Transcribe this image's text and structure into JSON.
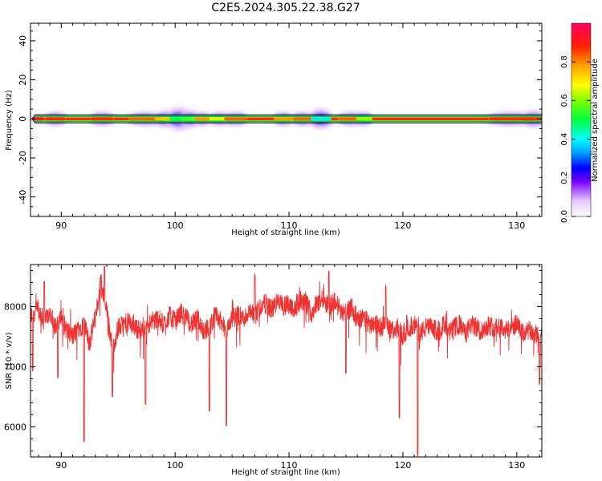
{
  "title": "C2E5.2024.305.22.38.G27",
  "chart_data": [
    {
      "type": "heatmap",
      "xlabel": "Height of straight line (km)",
      "ylabel": "Frequency (Hz)",
      "xlim": [
        87.3,
        132.2
      ],
      "ylim": [
        -50,
        49
      ],
      "xticks": [
        90,
        100,
        110,
        120,
        130
      ],
      "yticks": [
        -40,
        -20,
        0,
        20,
        40
      ],
      "ridge_frequency_hz": 0,
      "blobs": [
        {
          "x": 88.0,
          "spread": 0.5,
          "width": 1.0,
          "peak": 0.95
        },
        {
          "x": 89.5,
          "spread": 0.9,
          "width": 2.0,
          "peak": 0.9
        },
        {
          "x": 93.6,
          "spread": 1.0,
          "width": 2.0,
          "peak": 0.9
        },
        {
          "x": 97.5,
          "spread": 1.6,
          "width": 2.0,
          "peak": 0.85
        },
        {
          "x": 99.4,
          "spread": 1.2,
          "width": 2.5,
          "peak": 0.75
        },
        {
          "x": 100.4,
          "spread": 0.9,
          "width": 3.5,
          "peak": 0.5
        },
        {
          "x": 101.4,
          "spread": 0.8,
          "width": 2.5,
          "peak": 0.55
        },
        {
          "x": 102.4,
          "spread": 0.7,
          "width": 2.0,
          "peak": 0.8
        },
        {
          "x": 104.0,
          "spread": 1.0,
          "width": 2.0,
          "peak": 0.65
        },
        {
          "x": 105.3,
          "spread": 1.0,
          "width": 2.0,
          "peak": 0.85
        },
        {
          "x": 109.5,
          "spread": 0.8,
          "width": 2.0,
          "peak": 0.8
        },
        {
          "x": 111.2,
          "spread": 0.9,
          "width": 2.0,
          "peak": 0.85
        },
        {
          "x": 112.8,
          "spread": 0.9,
          "width": 3.0,
          "peak": 0.4
        },
        {
          "x": 115.5,
          "spread": 1.2,
          "width": 2.0,
          "peak": 0.85
        },
        {
          "x": 116.6,
          "spread": 0.7,
          "width": 2.0,
          "peak": 0.6
        },
        {
          "x": 129.5,
          "spread": 2.0,
          "width": 2.0,
          "peak": 0.9
        },
        {
          "x": 131.5,
          "spread": 0.9,
          "width": 2.5,
          "peak": 0.9
        }
      ]
    },
    {
      "type": "line",
      "xlabel": "Height of straight line (km)",
      "ylabel": "SNR (10 * v/v)",
      "xlim": [
        87.3,
        132.2
      ],
      "ylim": [
        5500,
        8700
      ],
      "xticks": [
        90,
        100,
        110,
        120,
        130
      ],
      "yticks": [
        6000,
        7000,
        8000
      ],
      "color": "#ee3333",
      "series": [
        {
          "x": [
            87.5,
            88.0,
            88.5,
            89.0,
            89.5,
            90.0,
            90.5,
            91.0,
            91.5,
            92.0,
            92.5,
            93.0,
            93.5,
            94.0,
            94.5,
            95.0,
            95.5,
            96.0,
            96.5,
            97.0,
            97.5,
            98.0,
            98.5,
            99.0,
            99.5,
            100.0,
            100.5,
            101.0,
            101.5,
            102.0,
            102.5,
            103.0,
            103.5,
            104.0,
            104.5,
            105.0,
            105.5,
            106.0,
            106.5,
            107.0,
            107.5,
            108.0,
            108.5,
            109.0,
            109.5,
            110.0,
            110.5,
            111.0,
            111.5,
            112.0,
            112.5,
            113.0,
            113.5,
            114.0,
            114.5,
            115.0,
            115.5,
            116.0,
            116.5,
            117.0,
            117.5,
            118.0,
            118.5,
            119.0,
            119.5,
            120.0,
            120.5,
            121.0,
            121.5,
            122.0,
            122.5,
            123.0,
            123.5,
            124.0,
            124.5,
            125.0,
            125.5,
            126.0,
            126.5,
            127.0,
            127.5,
            128.0,
            128.5,
            129.0,
            129.5,
            130.0,
            130.5,
            131.0,
            131.5,
            132.0
          ],
          "y": [
            7850,
            7950,
            7750,
            7900,
            7650,
            7800,
            7600,
            7500,
            7650,
            7700,
            7400,
            7850,
            8350,
            7900,
            7300,
            7650,
            7700,
            7750,
            7650,
            7600,
            7700,
            7750,
            7800,
            7700,
            7850,
            7750,
            7900,
            7800,
            7700,
            7800,
            7600,
            7650,
            7850,
            7750,
            7600,
            7800,
            7850,
            7800,
            7900,
            7850,
            8000,
            8050,
            7950,
            8100,
            8000,
            8050,
            7950,
            8100,
            8050,
            7900,
            8050,
            8150,
            8000,
            8100,
            7950,
            7900,
            8000,
            7750,
            7850,
            7700,
            7750,
            7650,
            7700,
            7600,
            7650,
            7500,
            7650,
            7700,
            7550,
            7650,
            7650,
            7600,
            7700,
            7550,
            7650,
            7700,
            7550,
            7700,
            7650,
            7600,
            7700,
            7650,
            7700,
            7600,
            7650,
            7700,
            7550,
            7600,
            7550,
            7500
          ]
        }
      ],
      "dips": [
        {
          "x": 87.5,
          "y": 6900
        },
        {
          "x": 89.7,
          "y": 6800
        },
        {
          "x": 92.0,
          "y": 5720
        },
        {
          "x": 94.5,
          "y": 6480
        },
        {
          "x": 97.4,
          "y": 6350
        },
        {
          "x": 103.0,
          "y": 6230
        },
        {
          "x": 104.5,
          "y": 6000
        },
        {
          "x": 115.0,
          "y": 6850
        },
        {
          "x": 119.7,
          "y": 6150
        },
        {
          "x": 121.3,
          "y": 5500
        },
        {
          "x": 132.0,
          "y": 6680
        }
      ],
      "peaks": [
        {
          "x": 93.8,
          "y": 8680
        },
        {
          "x": 93.5,
          "y": 8550
        },
        {
          "x": 88.5,
          "y": 8450
        },
        {
          "x": 107.0,
          "y": 8550
        },
        {
          "x": 113.5,
          "y": 8600
        },
        {
          "x": 118.5,
          "y": 8350
        }
      ]
    }
  ],
  "colorbar": {
    "label": "Normalized spectral amplitude",
    "range": [
      0,
      1
    ],
    "ticks": [
      0.0,
      0.2,
      0.4,
      0.6,
      0.8
    ]
  }
}
